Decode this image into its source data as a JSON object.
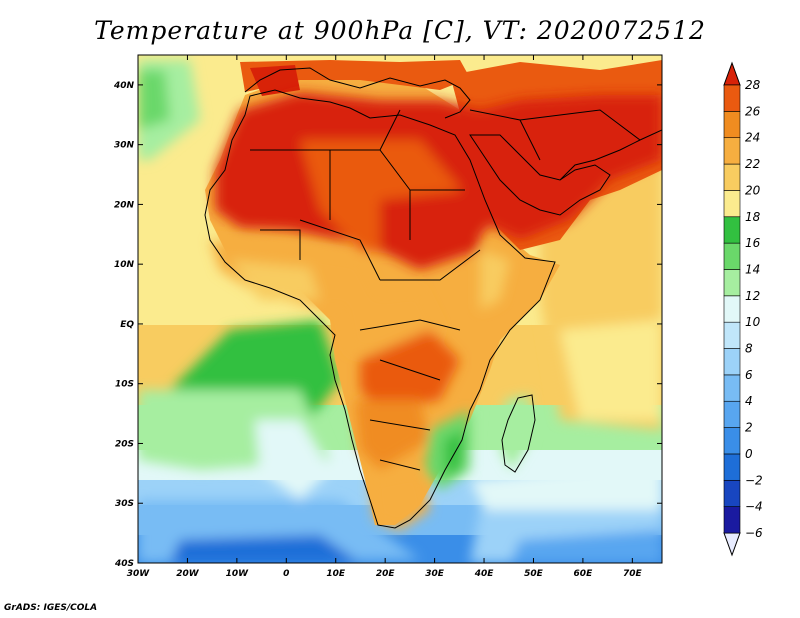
{
  "title": "Temperature at 900hPa [C], VT: 2020072512",
  "credit": "GrADS: IGES/COLA",
  "map": {
    "lon_range": [
      -30,
      76
    ],
    "lat_range": [
      -40,
      45
    ],
    "lon_ticks": [
      {
        "value": -30,
        "label": "30W"
      },
      {
        "value": -20,
        "label": "20W"
      },
      {
        "value": -10,
        "label": "10W"
      },
      {
        "value": 0,
        "label": "0"
      },
      {
        "value": 10,
        "label": "10E"
      },
      {
        "value": 20,
        "label": "20E"
      },
      {
        "value": 30,
        "label": "30E"
      },
      {
        "value": 40,
        "label": "40E"
      },
      {
        "value": 50,
        "label": "50E"
      },
      {
        "value": 60,
        "label": "60E"
      },
      {
        "value": 70,
        "label": "70E"
      }
    ],
    "lat_ticks": [
      {
        "value": 40,
        "label": "40N"
      },
      {
        "value": 30,
        "label": "30N"
      },
      {
        "value": 20,
        "label": "20N"
      },
      {
        "value": 10,
        "label": "10N"
      },
      {
        "value": 0,
        "label": "EQ"
      },
      {
        "value": -10,
        "label": "10S"
      },
      {
        "value": -20,
        "label": "20S"
      },
      {
        "value": -30,
        "label": "30S"
      },
      {
        "value": -40,
        "label": "40S"
      }
    ]
  },
  "colorbar": {
    "levels": [
      {
        "label": "-6",
        "color": "#1a1aa0"
      },
      {
        "label": "-4",
        "color": "#1846c0"
      },
      {
        "label": "-2",
        "color": "#1e6ed8"
      },
      {
        "label": "0",
        "color": "#3a8ee8"
      },
      {
        "label": "2",
        "color": "#58a6f0"
      },
      {
        "label": "4",
        "color": "#78bcf4"
      },
      {
        "label": "6",
        "color": "#9cd2f8"
      },
      {
        "label": "8",
        "color": "#c0e6fa"
      },
      {
        "label": "10",
        "color": "#e2f8f8"
      },
      {
        "label": "12",
        "color": "#a6eea0"
      },
      {
        "label": "14",
        "color": "#6ad86a"
      },
      {
        "label": "16",
        "color": "#32c040"
      },
      {
        "label": "18",
        "color": "#fbeb8e"
      },
      {
        "label": "20",
        "color": "#f8cc60"
      },
      {
        "label": "22",
        "color": "#f6ae40"
      },
      {
        "label": "24",
        "color": "#f08c20"
      },
      {
        "label": "26",
        "color": "#ea5a10"
      },
      {
        "label": "28",
        "color": "#d82208"
      }
    ],
    "under_color": "#e8ecff",
    "over_color": "#d82208"
  },
  "colors": {
    "land_hot": "#d82208",
    "frame": "#000000"
  }
}
